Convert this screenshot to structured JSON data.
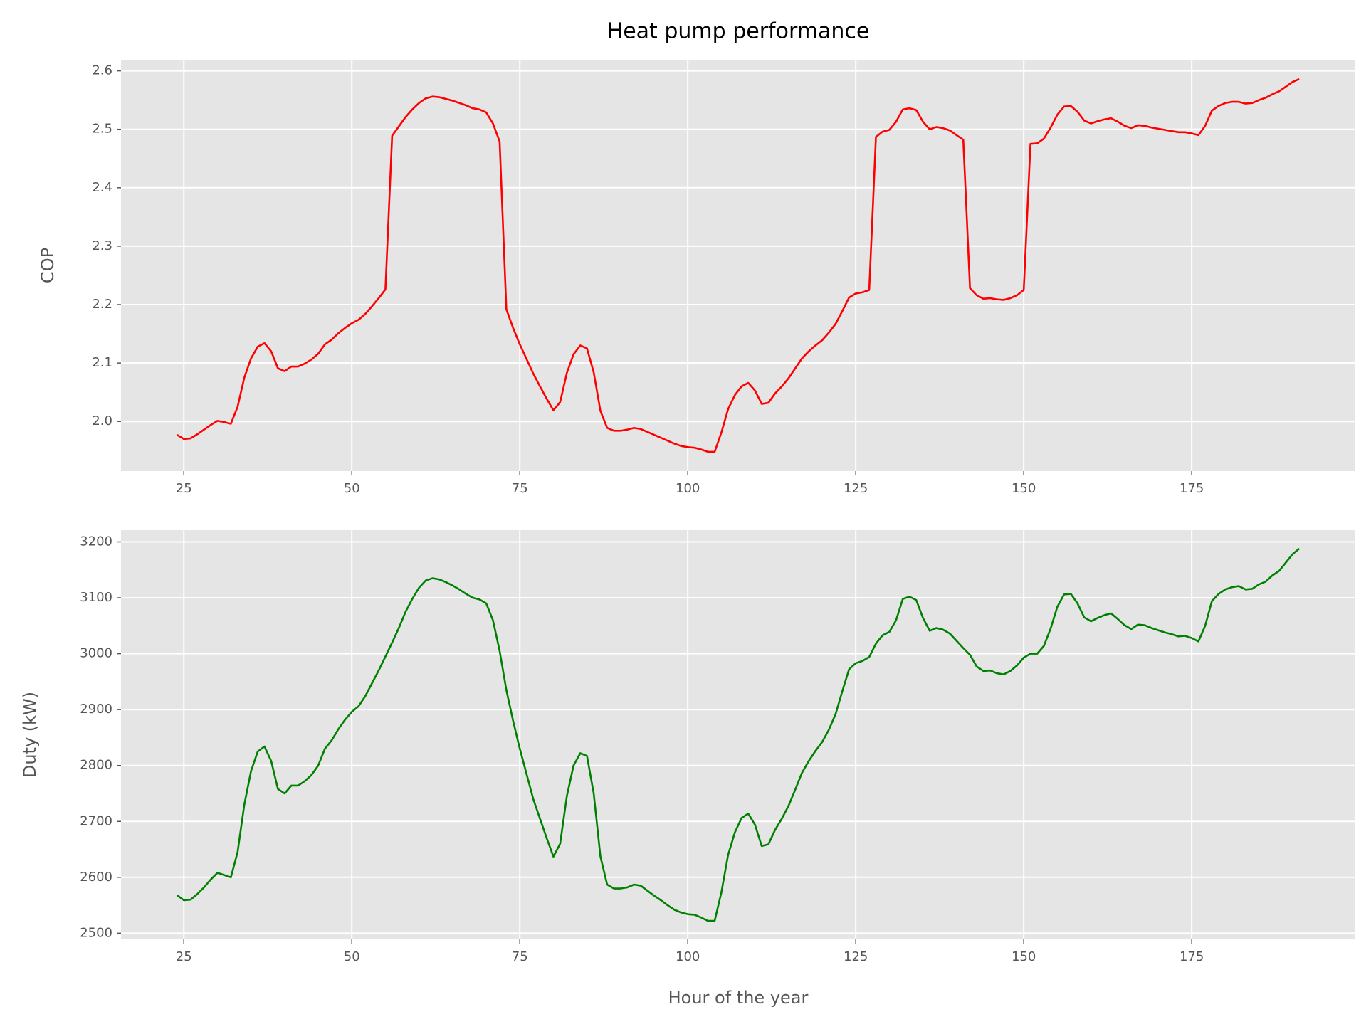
{
  "title": "Heat pump performance",
  "chart_data": [
    {
      "type": "line",
      "ylabel": "COP",
      "color": "#ff0000",
      "grid": true,
      "xlim": [
        15.65,
        199.35
      ],
      "ylim": [
        1.915,
        2.619
      ],
      "xticks": [
        25,
        50,
        75,
        100,
        125,
        150,
        175
      ],
      "yticks": [
        {
          "value": 2,
          "label": "2.0"
        },
        2.1,
        2.2,
        2.3,
        2.4,
        2.5,
        2.6
      ],
      "x": [
        24,
        25,
        26,
        27,
        28,
        29,
        30,
        31,
        32,
        33,
        34,
        35,
        36,
        37,
        38,
        39,
        40,
        41,
        42,
        43,
        44,
        45,
        46,
        47,
        48,
        49,
        50,
        51,
        52,
        53,
        54,
        55,
        56,
        57,
        58,
        59,
        60,
        61,
        62,
        63,
        64,
        65,
        66,
        67,
        68,
        69,
        70,
        71,
        72,
        73,
        74,
        75,
        76,
        77,
        78,
        79,
        80,
        81,
        82,
        83,
        84,
        85,
        86,
        87,
        88,
        89,
        90,
        91,
        92,
        93,
        94,
        95,
        96,
        97,
        98,
        99,
        100,
        101,
        102,
        103,
        104,
        105,
        106,
        107,
        108,
        109,
        110,
        111,
        112,
        113,
        114,
        115,
        116,
        117,
        118,
        119,
        120,
        121,
        122,
        123,
        124,
        125,
        126,
        127,
        128,
        129,
        130,
        131,
        132,
        133,
        134,
        135,
        136,
        137,
        138,
        139,
        140,
        141,
        142,
        143,
        144,
        145,
        146,
        147,
        148,
        149,
        150,
        151,
        152,
        153,
        154,
        155,
        156,
        157,
        158,
        159,
        160,
        161,
        162,
        163,
        164,
        165,
        166,
        167,
        168,
        169,
        170,
        171,
        172,
        173,
        174,
        175,
        176,
        177,
        178,
        179,
        180,
        181,
        182,
        183,
        184,
        185,
        186,
        187,
        188,
        189,
        190,
        191
      ],
      "values": [
        1.977,
        1.97,
        1.971,
        1.978,
        1.986,
        1.994,
        2.001,
        1.999,
        1.996,
        2.025,
        2.075,
        2.108,
        2.128,
        2.134,
        2.12,
        2.091,
        2.086,
        2.094,
        2.094,
        2.099,
        2.106,
        2.116,
        2.132,
        2.14,
        2.151,
        2.16,
        2.168,
        2.174,
        2.184,
        2.197,
        2.211,
        2.226,
        2.489,
        2.505,
        2.521,
        2.534,
        2.545,
        2.553,
        2.556,
        2.555,
        2.552,
        2.549,
        2.545,
        2.541,
        2.536,
        2.534,
        2.529,
        2.51,
        2.479,
        2.192,
        2.16,
        2.132,
        2.107,
        2.082,
        2.06,
        2.039,
        2.019,
        2.033,
        2.083,
        2.115,
        2.13,
        2.125,
        2.084,
        2.018,
        1.989,
        1.984,
        1.984,
        1.986,
        1.989,
        1.987,
        1.982,
        1.977,
        1.972,
        1.967,
        1.962,
        1.958,
        1.956,
        1.955,
        1.952,
        1.948,
        1.948,
        1.981,
        2.021,
        2.045,
        2.06,
        2.066,
        2.053,
        2.03,
        2.032,
        2.048,
        2.06,
        2.074,
        2.091,
        2.108,
        2.12,
        2.13,
        2.139,
        2.152,
        2.167,
        2.189,
        2.212,
        2.219,
        2.221,
        2.225,
        2.487,
        2.496,
        2.499,
        2.513,
        2.534,
        2.536,
        2.533,
        2.513,
        2.5,
        2.504,
        2.502,
        2.498,
        2.49,
        2.482,
        2.228,
        2.216,
        2.21,
        2.211,
        2.209,
        2.208,
        2.211,
        2.216,
        2.225,
        2.475,
        2.476,
        2.484,
        2.503,
        2.525,
        2.539,
        2.54,
        2.53,
        2.515,
        2.51,
        2.514,
        2.517,
        2.519,
        2.513,
        2.506,
        2.502,
        2.507,
        2.506,
        2.503,
        2.501,
        2.499,
        2.497,
        2.495,
        2.495,
        2.493,
        2.49,
        2.506,
        2.532,
        2.54,
        2.545,
        2.547,
        2.547,
        2.544,
        2.545,
        2.55,
        2.554,
        2.56,
        2.565,
        2.573,
        2.581,
        2.586
      ]
    },
    {
      "type": "line",
      "ylabel": "Duty (kW)",
      "xlabel": "Hour of the year",
      "color": "#008000",
      "grid": true,
      "xlim": [
        15.65,
        199.35
      ],
      "ylim": [
        2489,
        3221
      ],
      "xticks": [
        25,
        50,
        75,
        100,
        125,
        150,
        175
      ],
      "yticks": [
        2500,
        2600,
        2700,
        2800,
        2900,
        3000,
        3100,
        3200
      ],
      "x": [
        24,
        25,
        26,
        27,
        28,
        29,
        30,
        31,
        32,
        33,
        34,
        35,
        36,
        37,
        38,
        39,
        40,
        41,
        42,
        43,
        44,
        45,
        46,
        47,
        48,
        49,
        50,
        51,
        52,
        53,
        54,
        55,
        56,
        57,
        58,
        59,
        60,
        61,
        62,
        63,
        64,
        65,
        66,
        67,
        68,
        69,
        70,
        71,
        72,
        73,
        74,
        75,
        76,
        77,
        78,
        79,
        80,
        81,
        82,
        83,
        84,
        85,
        86,
        87,
        88,
        89,
        90,
        91,
        92,
        93,
        94,
        95,
        96,
        97,
        98,
        99,
        100,
        101,
        102,
        103,
        104,
        105,
        106,
        107,
        108,
        109,
        110,
        111,
        112,
        113,
        114,
        115,
        116,
        117,
        118,
        119,
        120,
        121,
        122,
        123,
        124,
        125,
        126,
        127,
        128,
        129,
        130,
        131,
        132,
        133,
        134,
        135,
        136,
        137,
        138,
        139,
        140,
        141,
        142,
        143,
        144,
        145,
        146,
        147,
        148,
        149,
        150,
        151,
        152,
        153,
        154,
        155,
        156,
        157,
        158,
        159,
        160,
        161,
        162,
        163,
        164,
        165,
        166,
        167,
        168,
        169,
        170,
        171,
        172,
        173,
        174,
        175,
        176,
        177,
        178,
        179,
        180,
        181,
        182,
        183,
        184,
        185,
        186,
        187,
        188,
        189,
        190,
        191
      ],
      "values": [
        2568,
        2559,
        2560,
        2570,
        2582,
        2596,
        2608,
        2604,
        2600,
        2645,
        2730,
        2790,
        2825,
        2834,
        2808,
        2758,
        2750,
        2764,
        2764,
        2772,
        2783,
        2800,
        2830,
        2845,
        2865,
        2882,
        2896,
        2906,
        2924,
        2947,
        2970,
        2995,
        3020,
        3046,
        3075,
        3098,
        3118,
        3131,
        3135,
        3133,
        3128,
        3122,
        3115,
        3107,
        3100,
        3097,
        3090,
        3060,
        3005,
        2935,
        2880,
        2830,
        2785,
        2740,
        2705,
        2670,
        2637,
        2660,
        2745,
        2800,
        2822,
        2817,
        2750,
        2637,
        2587,
        2580,
        2580,
        2582,
        2587,
        2585,
        2576,
        2567,
        2559,
        2550,
        2542,
        2537,
        2534,
        2533,
        2528,
        2522,
        2522,
        2573,
        2640,
        2680,
        2706,
        2714,
        2694,
        2656,
        2659,
        2685,
        2705,
        2728,
        2757,
        2787,
        2808,
        2826,
        2842,
        2864,
        2892,
        2933,
        2972,
        2983,
        2987,
        2994,
        3018,
        3033,
        3039,
        3060,
        3098,
        3102,
        3096,
        3064,
        3041,
        3046,
        3043,
        3036,
        3023,
        3010,
        2998,
        2977,
        2969,
        2970,
        2965,
        2963,
        2969,
        2979,
        2993,
        3000,
        3000,
        3014,
        3045,
        3084,
        3106,
        3107,
        3090,
        3065,
        3058,
        3064,
        3069,
        3072,
        3062,
        3051,
        3044,
        3052,
        3051,
        3046,
        3042,
        3038,
        3035,
        3031,
        3032,
        3028,
        3022,
        3050,
        3094,
        3107,
        3115,
        3119,
        3121,
        3115,
        3116,
        3124,
        3129,
        3140,
        3148,
        3163,
        3178,
        3188
      ]
    }
  ]
}
